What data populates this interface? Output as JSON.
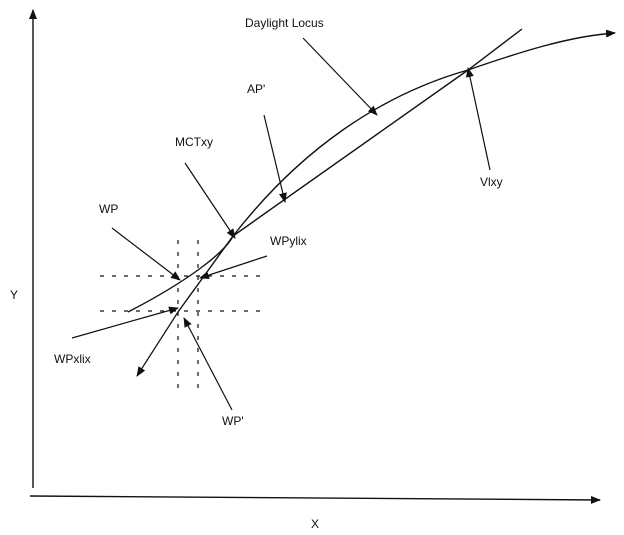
{
  "labels": {
    "daylight_locus": "Daylight Locus",
    "ap": "AP'",
    "mctxy": "MCTxy",
    "vixy": "Vlxy",
    "wp": "WP",
    "wpyfix": "WPylix",
    "wpxfix": "WPxlix",
    "wp_prime": "WP'"
  },
  "axes": {
    "x_label": "X",
    "y_label": "Y"
  }
}
